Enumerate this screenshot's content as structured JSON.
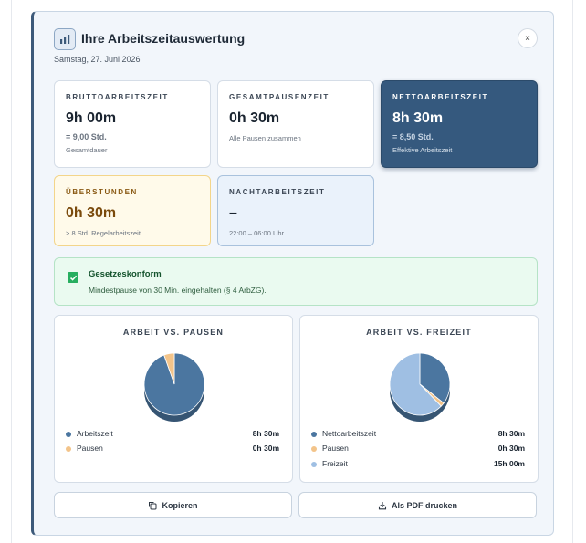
{
  "header": {
    "title": "Ihre Arbeitszeitauswertung",
    "date": "Samstag, 27. Juni 2026",
    "close_label": "×"
  },
  "cards": {
    "brutto": {
      "label": "BRUTTOARBEITSZEIT",
      "value": "9h 00m",
      "sub1": "= 9,00 Std.",
      "sub2": "Gesamtdauer"
    },
    "pausen": {
      "label": "GESAMTPAUSENZEIT",
      "value": "0h 30m",
      "sub": "Alle Pausen zusammen"
    },
    "netto": {
      "label": "NETTOARBEITSZEIT",
      "value": "8h 30m",
      "sub1": "= 8,50 Std.",
      "sub2": "Effektive Arbeitszeit"
    },
    "ueberstunden": {
      "label": "ÜBERSTUNDEN",
      "value": "0h 30m",
      "sub": "> 8 Std. Regelarbeitszeit"
    },
    "nacht": {
      "label": "NACHTARBEITSZEIT",
      "value": "–",
      "sub": "22:00 – 06:00 Uhr"
    }
  },
  "compliance": {
    "title": "Gesetzeskonform",
    "text": "Mindestpause von 30 Min. eingehalten (§ 4 ArbZG)."
  },
  "chart_data": [
    {
      "type": "pie",
      "title": "ARBEIT VS. PAUSEN",
      "slices": [
        {
          "name": "Arbeitszeit",
          "label": "8h 30m",
          "value": 510,
          "color": "#4b76a0"
        },
        {
          "name": "Pausen",
          "label": "0h 30m",
          "value": 30,
          "color": "#f3c48a"
        }
      ]
    },
    {
      "type": "pie",
      "title": "ARBEIT VS. FREIZEIT",
      "slices": [
        {
          "name": "Nettoarbeitszeit",
          "label": "8h 30m",
          "value": 510,
          "color": "#4b76a0"
        },
        {
          "name": "Pausen",
          "label": "0h 30m",
          "value": 30,
          "color": "#f3c48a"
        },
        {
          "name": "Freizeit",
          "label": "15h 00m",
          "value": 900,
          "color": "#9fbfe3"
        }
      ]
    }
  ],
  "actions": {
    "copy_label": "Kopieren",
    "pdf_label": "Als PDF drucken"
  },
  "colors": {
    "accent": "#3d5a7a",
    "netto_card": "#35597e",
    "success": "#27ae60",
    "warning_bg": "#fffaea"
  }
}
